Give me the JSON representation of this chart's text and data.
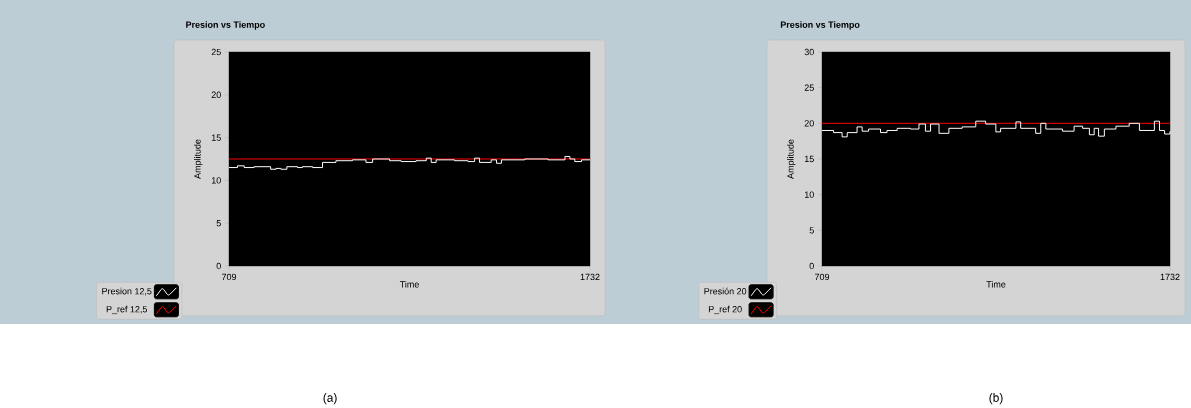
{
  "chart_data": [
    {
      "type": "step",
      "title": "Presion vs Tiempo",
      "xlabel": "Time",
      "ylabel": "Amplitude",
      "xlim": [
        709,
        1732
      ],
      "xticks": [
        709,
        1732
      ],
      "ylim": [
        0,
        25
      ],
      "yticks": [
        0,
        5,
        10,
        15,
        20,
        25
      ],
      "legend": "bottom left",
      "annotations": [
        "(a)"
      ],
      "series": [
        {
          "name": "Presion 12,5",
          "color": "#ffffff",
          "x": [
            709,
            733,
            752,
            780,
            827,
            842,
            856,
            873,
            903,
            917,
            946,
            974,
            1012,
            1059,
            1097,
            1116,
            1164,
            1197,
            1239,
            1268,
            1282,
            1296,
            1348,
            1386,
            1405,
            1419,
            1452,
            1467,
            1481,
            1547,
            1613,
            1661,
            1675,
            1689,
            1708,
            1732
          ],
          "values": [
            11.5,
            11.7,
            11.5,
            11.6,
            11.3,
            11.4,
            11.3,
            11.6,
            11.5,
            11.6,
            11.5,
            12.1,
            12.3,
            12.4,
            12.1,
            12.5,
            12.3,
            12.2,
            12.3,
            12.6,
            12.1,
            12.4,
            12.3,
            12.2,
            12.6,
            12.1,
            12.4,
            12.0,
            12.4,
            12.5,
            12.4,
            12.8,
            12.5,
            12.2,
            12.4,
            12.4
          ]
        },
        {
          "name": "P_ref 12,5",
          "color": "#ff0000",
          "x": [
            709,
            1732
          ],
          "values": [
            12.5,
            12.5
          ]
        }
      ]
    },
    {
      "type": "step",
      "title": "Presion vs Tiempo",
      "xlabel": "Time",
      "ylabel": "Amplitude",
      "xlim": [
        709,
        1732
      ],
      "xticks": [
        709,
        1732
      ],
      "ylim": [
        0,
        30
      ],
      "yticks": [
        0,
        5,
        10,
        15,
        20,
        25,
        30
      ],
      "legend": "bottom left",
      "annotations": [
        "(b)"
      ],
      "series": [
        {
          "name": "Presión 20",
          "color": "#ffffff",
          "x": [
            709,
            743,
            768,
            783,
            812,
            827,
            846,
            881,
            900,
            930,
            969,
            994,
            1013,
            1028,
            1053,
            1082,
            1121,
            1161,
            1190,
            1220,
            1234,
            1279,
            1293,
            1337,
            1352,
            1367,
            1416,
            1450,
            1475,
            1495,
            1509,
            1522,
            1539,
            1573,
            1612,
            1642,
            1686,
            1701,
            1716,
            1732
          ],
          "values": [
            19.0,
            18.7,
            18.1,
            18.7,
            19.5,
            18.9,
            19.2,
            18.7,
            19.0,
            19.3,
            19.2,
            19.9,
            18.9,
            19.9,
            18.6,
            19.3,
            19.5,
            20.3,
            19.9,
            18.8,
            19.3,
            20.2,
            19.3,
            18.6,
            20.0,
            19.2,
            18.9,
            19.6,
            19.3,
            18.4,
            19.3,
            18.2,
            19.2,
            19.6,
            20.0,
            19.0,
            20.3,
            19.0,
            18.5,
            18.9
          ]
        },
        {
          "name": "P_ref 20",
          "color": "#ff0000",
          "x": [
            709,
            1732
          ],
          "values": [
            20,
            20
          ]
        }
      ]
    }
  ]
}
